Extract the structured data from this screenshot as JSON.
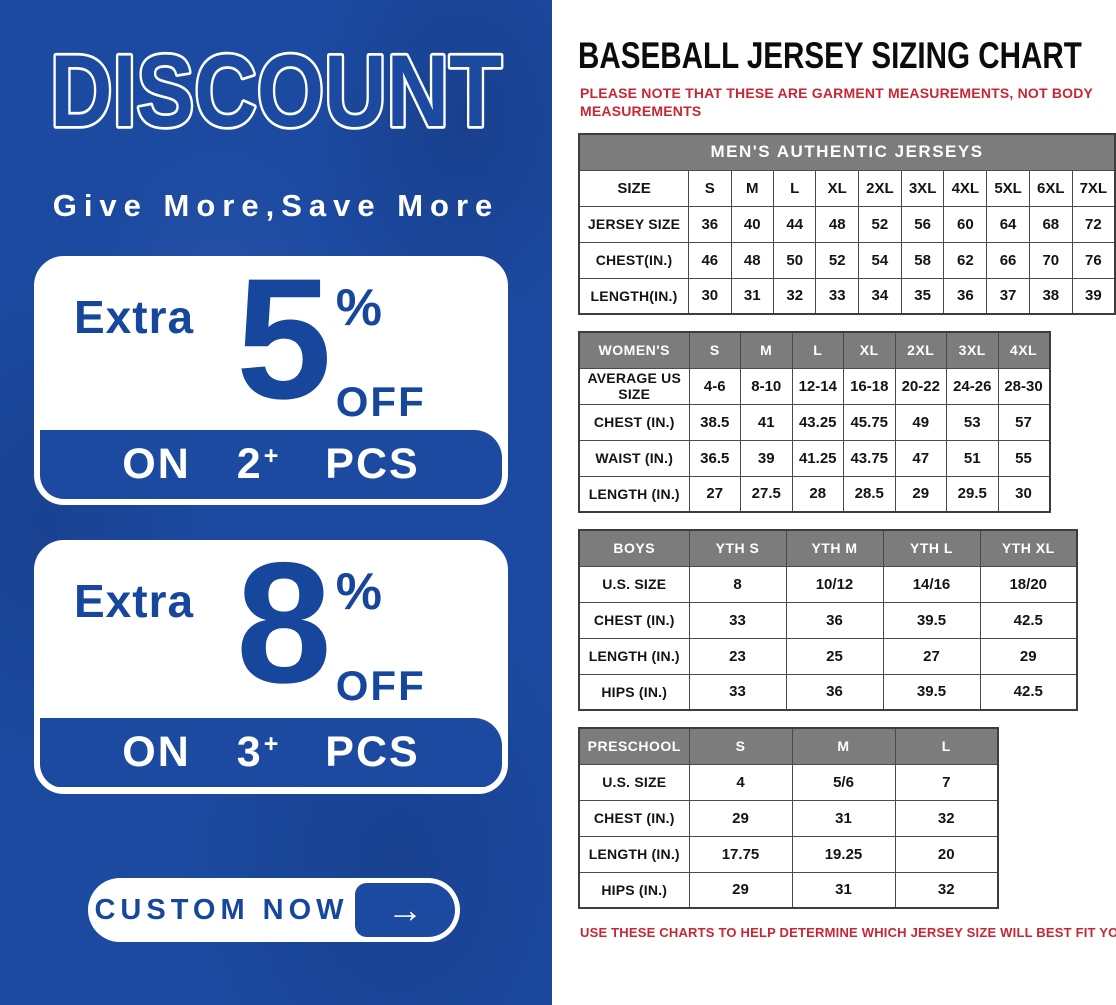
{
  "banner": {
    "title": "DISCOUNT",
    "subtitle": "Give More,Save More",
    "offers": [
      {
        "prefix": "Extra",
        "percent": "5",
        "percent_sign": "%",
        "off_label": "OFF",
        "on_label": "ON",
        "quantity": "2",
        "plus": "+",
        "pcs_label": "PCS"
      },
      {
        "prefix": "Extra",
        "percent": "8",
        "percent_sign": "%",
        "off_label": "OFF",
        "on_label": "ON",
        "quantity": "3",
        "plus": "+",
        "pcs_label": "PCS"
      }
    ],
    "cta_label": "CUSTOM NOW",
    "cta_arrow": "→"
  },
  "sheet": {
    "title": "BASEBALL JERSEY SIZING CHART",
    "note_top": "PLEASE NOTE THAT THESE ARE GARMENT MEASUREMENTS, NOT BODY MEASUREMENTS",
    "note_bottom": "USE THESE CHARTS TO HELP DETERMINE WHICH JERSEY SIZE WILL BEST FIT YOU.",
    "tables": [
      {
        "id": "mens",
        "caption": "MEN'S AUTHENTIC JERSEYS",
        "columns": [
          "SIZE",
          "S",
          "M",
          "L",
          "XL",
          "2XL",
          "3XL",
          "4XL",
          "5XL",
          "6XL",
          "7XL"
        ],
        "rows": [
          [
            "JERSEY SIZE",
            "36",
            "40",
            "44",
            "48",
            "52",
            "56",
            "60",
            "64",
            "68",
            "72"
          ],
          [
            "CHEST(IN.)",
            "46",
            "48",
            "50",
            "52",
            "54",
            "58",
            "62",
            "66",
            "70",
            "76"
          ],
          [
            "LENGTH(IN.)",
            "30",
            "31",
            "32",
            "33",
            "34",
            "35",
            "36",
            "37",
            "38",
            "39"
          ]
        ]
      },
      {
        "id": "womens",
        "columns": [
          "WOMEN'S",
          "S",
          "M",
          "L",
          "XL",
          "2XL",
          "3XL",
          "4XL"
        ],
        "rows": [
          [
            "AVERAGE US SIZE",
            "4-6",
            "8-10",
            "12-14",
            "16-18",
            "20-22",
            "24-26",
            "28-30"
          ],
          [
            "CHEST (IN.)",
            "38.5",
            "41",
            "43.25",
            "45.75",
            "49",
            "53",
            "57"
          ],
          [
            "WAIST (IN.)",
            "36.5",
            "39",
            "41.25",
            "43.75",
            "47",
            "51",
            "55"
          ],
          [
            "LENGTH (IN.)",
            "27",
            "27.5",
            "28",
            "28.5",
            "29",
            "29.5",
            "30"
          ]
        ]
      },
      {
        "id": "boys",
        "columns": [
          "BOYS",
          "YTH S",
          "YTH M",
          "YTH L",
          "YTH XL"
        ],
        "rows": [
          [
            "U.S. SIZE",
            "8",
            "10/12",
            "14/16",
            "18/20"
          ],
          [
            "CHEST (IN.)",
            "33",
            "36",
            "39.5",
            "42.5"
          ],
          [
            "LENGTH (IN.)",
            "23",
            "25",
            "27",
            "29"
          ],
          [
            "HIPS (IN.)",
            "33",
            "36",
            "39.5",
            "42.5"
          ]
        ]
      },
      {
        "id": "preschool",
        "columns": [
          "PRESCHOOL",
          "S",
          "M",
          "L"
        ],
        "rows": [
          [
            "U.S. SIZE",
            "4",
            "5/6",
            "7"
          ],
          [
            "CHEST (IN.)",
            "29",
            "31",
            "32"
          ],
          [
            "LENGTH (IN.)",
            "17.75",
            "19.25",
            "20"
          ],
          [
            "HIPS (IN.)",
            "29",
            "31",
            "32"
          ]
        ]
      }
    ]
  },
  "colors": {
    "banner_blue": "#1c4aa1",
    "accent_blue": "#17479c",
    "header_gray": "#7c7c7c",
    "note_red": "#c92634"
  }
}
